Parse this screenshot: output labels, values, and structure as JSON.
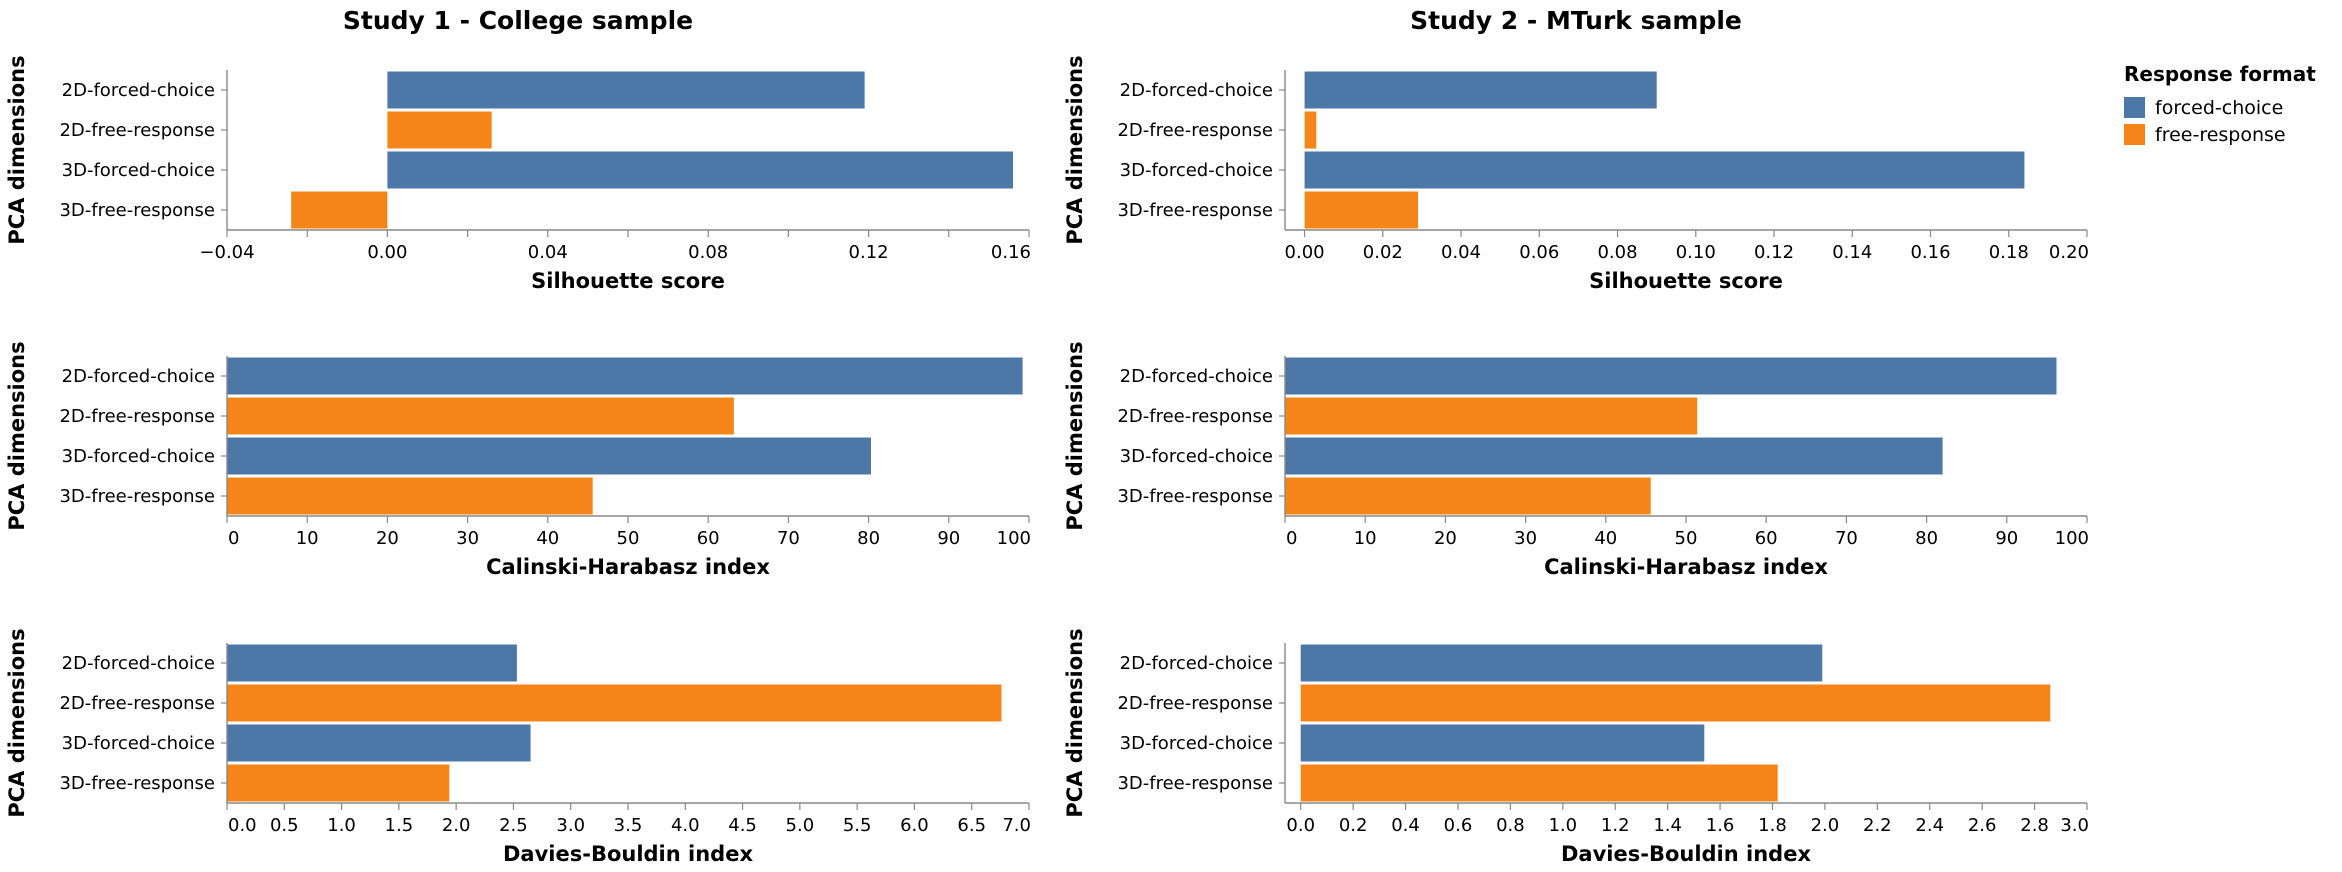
{
  "figure": {
    "columns": [
      "Study 1 - College sample",
      "Study 2 - MTurk sample"
    ],
    "legend": {
      "title": "Response format",
      "items": [
        {
          "label": "forced-choice",
          "color": "#4c78a8"
        },
        {
          "label": "free-response",
          "color": "#f58518"
        }
      ]
    }
  },
  "chart_data": [
    {
      "type": "bar",
      "orientation": "horizontal",
      "panel": "Study 1 - College sample",
      "categories": [
        "2D-forced-choice",
        "2D-free-response",
        "3D-forced-choice",
        "3D-free-response"
      ],
      "formats": [
        "forced-choice",
        "free-response",
        "forced-choice",
        "free-response"
      ],
      "values": [
        0.119,
        0.026,
        0.156,
        -0.024
      ],
      "xlabel": "Silhouette score",
      "ylabel": "PCA dimensions",
      "xlim": [
        -0.04,
        0.16
      ],
      "ticks": [
        -0.04,
        0.0,
        0.04,
        0.08,
        0.12,
        0.16
      ],
      "tick_labels": [
        "−0.04",
        "0.00",
        "0.04",
        "0.08",
        "0.12",
        "0.16"
      ],
      "minor_ticks": [
        -0.02,
        0.02,
        0.06,
        0.1,
        0.14
      ]
    },
    {
      "type": "bar",
      "orientation": "horizontal",
      "panel": "Study 2 - MTurk sample",
      "categories": [
        "2D-forced-choice",
        "2D-free-response",
        "3D-forced-choice",
        "3D-free-response"
      ],
      "formats": [
        "forced-choice",
        "free-response",
        "forced-choice",
        "free-response"
      ],
      "values": [
        0.09,
        0.003,
        0.184,
        0.029
      ],
      "xlabel": "Silhouette score",
      "ylabel": "PCA dimensions",
      "xlim": [
        -0.005,
        0.2
      ],
      "ticks": [
        0.0,
        0.02,
        0.04,
        0.06,
        0.08,
        0.1,
        0.12,
        0.14,
        0.16,
        0.18,
        0.2
      ],
      "tick_labels": [
        "0.00",
        "0.02",
        "0.04",
        "0.06",
        "0.08",
        "0.10",
        "0.12",
        "0.14",
        "0.16",
        "0.18",
        "0.20"
      ],
      "minor_ticks": []
    },
    {
      "type": "bar",
      "orientation": "horizontal",
      "panel": "Study 1 - College sample",
      "categories": [
        "2D-forced-choice",
        "2D-free-response",
        "3D-forced-choice",
        "3D-free-response"
      ],
      "formats": [
        "forced-choice",
        "free-response",
        "forced-choice",
        "free-response"
      ],
      "values": [
        99.2,
        63.2,
        80.3,
        45.6
      ],
      "xlabel": "Calinski-Harabasz index",
      "ylabel": "PCA dimensions",
      "xlim": [
        0,
        100
      ],
      "ticks": [
        0,
        10,
        20,
        30,
        40,
        50,
        60,
        70,
        80,
        90,
        100
      ],
      "tick_labels": [
        "0",
        "10",
        "20",
        "30",
        "40",
        "50",
        "60",
        "70",
        "80",
        "90",
        "100"
      ],
      "minor_ticks": []
    },
    {
      "type": "bar",
      "orientation": "horizontal",
      "panel": "Study 2 - MTurk sample",
      "categories": [
        "2D-forced-choice",
        "2D-free-response",
        "3D-forced-choice",
        "3D-free-response"
      ],
      "formats": [
        "forced-choice",
        "free-response",
        "forced-choice",
        "free-response"
      ],
      "values": [
        96.2,
        51.4,
        82.0,
        45.6
      ],
      "xlabel": "Calinski-Harabasz index",
      "ylabel": "PCA dimensions",
      "xlim": [
        0,
        100
      ],
      "ticks": [
        0,
        10,
        20,
        30,
        40,
        50,
        60,
        70,
        80,
        90,
        100
      ],
      "tick_labels": [
        "0",
        "10",
        "20",
        "30",
        "40",
        "50",
        "60",
        "70",
        "80",
        "90",
        "100"
      ],
      "minor_ticks": []
    },
    {
      "type": "bar",
      "orientation": "horizontal",
      "panel": "Study 1 - College sample",
      "categories": [
        "2D-forced-choice",
        "2D-free-response",
        "3D-forced-choice",
        "3D-free-response"
      ],
      "formats": [
        "forced-choice",
        "free-response",
        "forced-choice",
        "free-response"
      ],
      "values": [
        2.53,
        6.76,
        2.65,
        1.94
      ],
      "xlabel": "Davies-Bouldin index",
      "ylabel": "PCA dimensions",
      "xlim": [
        0,
        7.0
      ],
      "ticks": [
        0,
        0.5,
        1,
        1.5,
        2,
        2.5,
        3,
        3.5,
        4,
        4.5,
        5,
        5.5,
        6,
        6.5,
        7
      ],
      "tick_labels": [
        "0.0",
        "0.5",
        "1.0",
        "1.5",
        "2.0",
        "2.5",
        "3.0",
        "3.5",
        "4.0",
        "4.5",
        "5.0",
        "5.5",
        "6.0",
        "6.5",
        "7.0"
      ],
      "minor_ticks": []
    },
    {
      "type": "bar",
      "orientation": "horizontal",
      "panel": "Study 2 - MTurk sample",
      "categories": [
        "2D-forced-choice",
        "2D-free-response",
        "3D-forced-choice",
        "3D-free-response"
      ],
      "formats": [
        "forced-choice",
        "free-response",
        "forced-choice",
        "free-response"
      ],
      "values": [
        1.99,
        2.86,
        1.54,
        1.82
      ],
      "xlabel": "Davies-Bouldin index",
      "ylabel": "PCA dimensions",
      "xlim": [
        -0.06,
        3.0
      ],
      "ticks": [
        0,
        0.2,
        0.4,
        0.6,
        0.8,
        1.0,
        1.2,
        1.4,
        1.6,
        1.8,
        2.0,
        2.2,
        2.4,
        2.6,
        2.8,
        3.0
      ],
      "tick_labels": [
        "0.0",
        "0.2",
        "0.4",
        "0.6",
        "0.8",
        "1.0",
        "1.2",
        "1.4",
        "1.6",
        "1.8",
        "2.0",
        "2.2",
        "2.4",
        "2.6",
        "2.8",
        "3.0"
      ],
      "minor_ticks": []
    }
  ]
}
